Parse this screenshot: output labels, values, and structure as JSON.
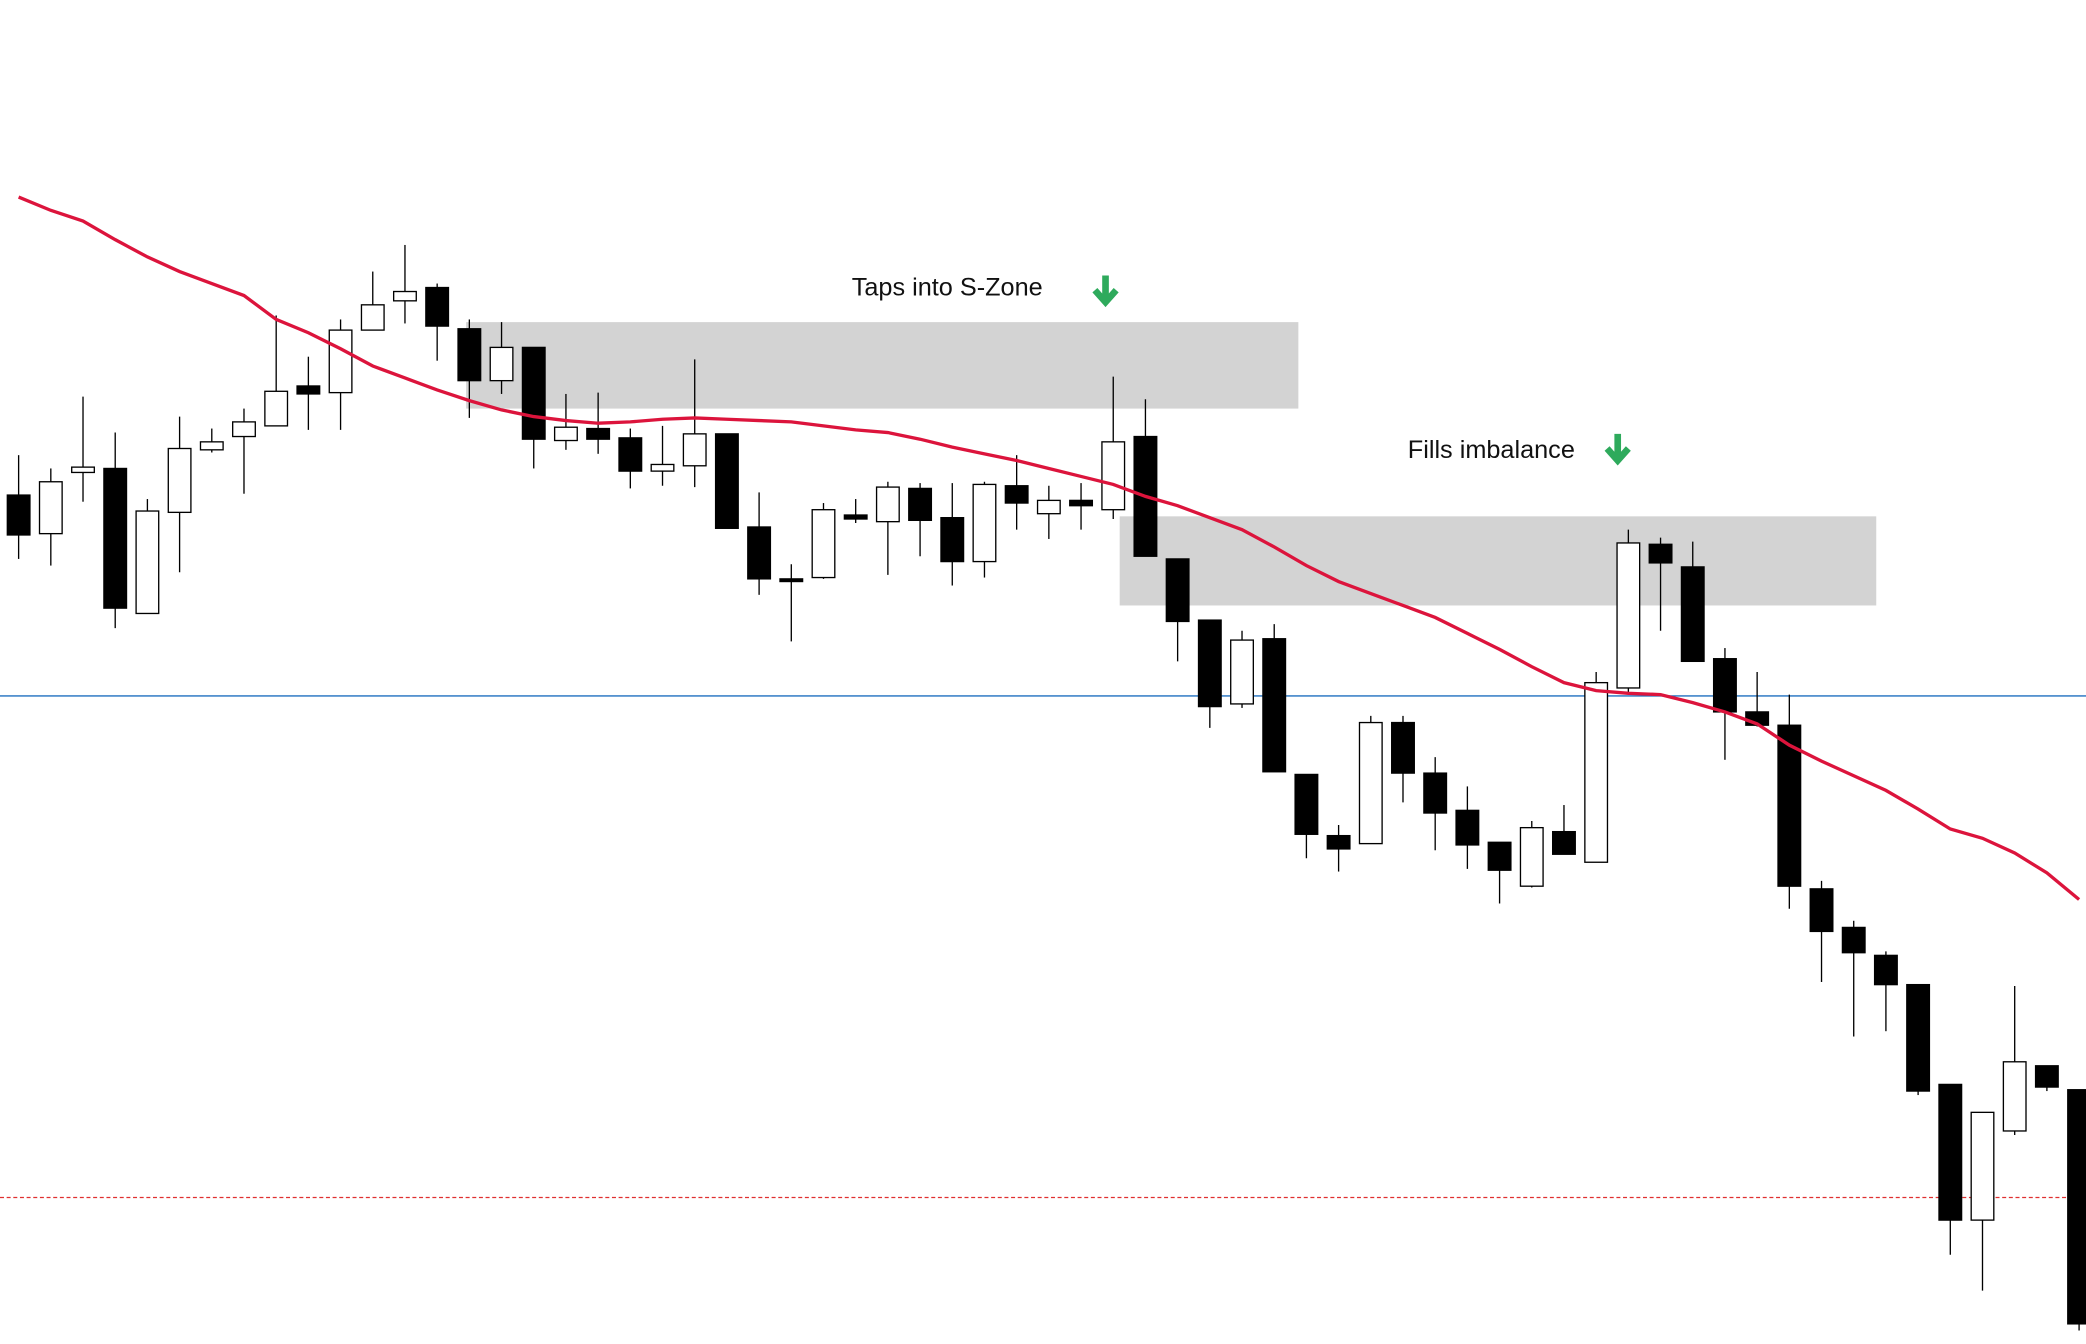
{
  "chart_data": {
    "type": "candlestick",
    "ylim": [
      0,
      1010
    ],
    "open": [
      638,
      609,
      655,
      658,
      549,
      625,
      672,
      682,
      690,
      720,
      715,
      762,
      784,
      794,
      763,
      724,
      749,
      679,
      688,
      681,
      656,
      660,
      684,
      614,
      575,
      576,
      623,
      618,
      643,
      621,
      588,
      645,
      624,
      634,
      627,
      682,
      590,
      544,
      481,
      530,
      428,
      382,
      376,
      467,
      429,
      401,
      377,
      344,
      385,
      362,
      493,
      601,
      584,
      515,
      475,
      465,
      342,
      313,
      292,
      270,
      195,
      93,
      160,
      209,
      191
    ],
    "high": [
      668,
      658,
      712,
      685,
      635,
      697,
      688,
      703,
      773,
      742,
      770,
      806,
      826,
      797,
      770,
      768,
      749,
      714,
      715,
      688,
      690,
      740,
      684,
      640,
      586,
      632,
      635,
      648,
      647,
      647,
      648,
      668,
      645,
      647,
      727,
      710,
      590,
      544,
      536,
      541,
      428,
      390,
      472,
      472,
      441,
      419,
      377,
      393,
      405,
      505,
      612,
      606,
      603,
      523,
      505,
      488,
      348,
      318,
      295,
      270,
      195,
      174,
      269,
      209,
      191
    ],
    "low": [
      590,
      585,
      633,
      538,
      549,
      580,
      670,
      639,
      690,
      687,
      687,
      762,
      767,
      739,
      696,
      714,
      658,
      672,
      669,
      643,
      645,
      644,
      613,
      563,
      528,
      575,
      617,
      578,
      592,
      570,
      576,
      612,
      605,
      612,
      620,
      592,
      513,
      463,
      478,
      430,
      365,
      355,
      376,
      407,
      371,
      357,
      331,
      343,
      368,
      362,
      490,
      536,
      513,
      439,
      464,
      327,
      272,
      231,
      235,
      187,
      67,
      40,
      157,
      190,
      10
    ],
    "close": [
      608,
      648,
      659,
      553,
      626,
      673,
      678,
      693,
      716,
      714,
      762,
      781,
      791,
      765,
      724,
      749,
      680,
      689,
      680,
      656,
      661,
      684,
      613,
      575,
      573,
      627,
      620,
      644,
      619,
      588,
      646,
      632,
      634,
      630,
      678,
      592,
      543,
      479,
      529,
      430,
      383,
      372,
      467,
      429,
      399,
      375,
      356,
      388,
      368,
      497,
      602,
      587,
      513,
      475,
      465,
      344,
      310,
      294,
      270,
      190,
      93,
      174,
      212,
      193,
      15
    ],
    "up_color": "#ffffff",
    "down_color": "#000000",
    "moving_average": {
      "color": "#dc143c",
      "values": [
        862,
        852,
        844,
        830,
        817,
        806,
        797,
        788,
        770,
        760,
        748,
        735,
        726,
        717,
        709,
        702,
        697,
        694,
        692,
        693,
        695,
        696,
        695,
        694,
        693,
        690,
        687,
        685,
        680,
        674,
        669,
        664,
        658,
        652,
        646,
        637,
        630,
        621,
        612,
        599,
        585,
        573,
        564,
        555,
        546,
        534,
        522,
        509,
        497,
        491,
        489,
        488,
        482,
        475,
        466,
        450,
        438,
        427,
        416,
        402,
        387,
        380,
        369,
        354,
        334
      ]
    },
    "zones": [
      {
        "x": [
          13.9,
          39.75
        ],
        "low": 703,
        "high": 768,
        "color": "#d3d3d3"
      },
      {
        "x": [
          34.2,
          57.7
        ],
        "low": 555,
        "high": 622,
        "color": "#d3d3d3"
      }
    ],
    "levels": [
      {
        "value": 487,
        "color": "#1f6fbf",
        "dashed": false
      },
      {
        "value": 110,
        "color": "#e03030",
        "dashed": true
      }
    ],
    "annotations": [
      "Taps into S-Zone",
      "Fills imbalance"
    ]
  }
}
